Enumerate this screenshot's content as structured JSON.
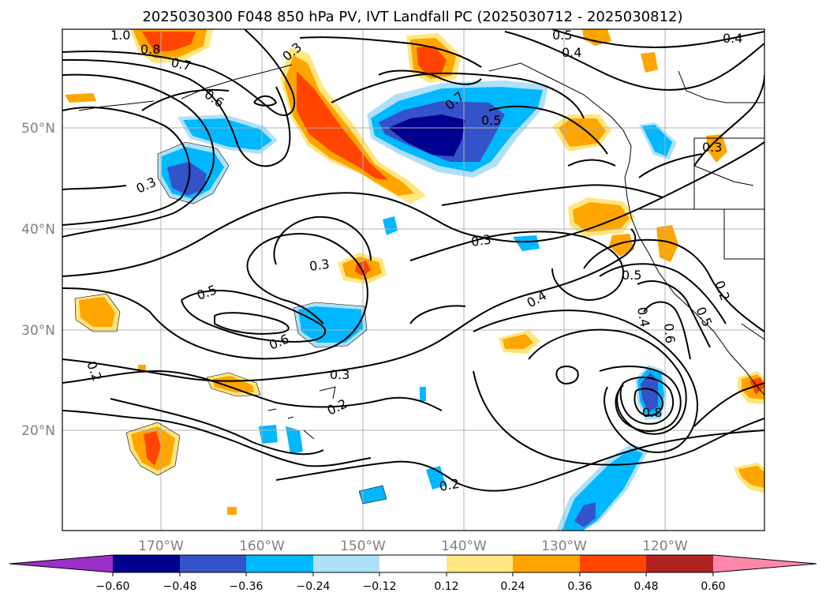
{
  "title": "2025030300 F048 850 hPa PV, IVT Landfall PC (2025030712 - 2025030812)",
  "map": {
    "lat_labels": [
      "50°N",
      "40°N",
      "30°N",
      "20°N"
    ],
    "lon_labels": [
      "170°W",
      "160°W",
      "150°W",
      "140°W",
      "130°W",
      "120°W"
    ]
  },
  "colorbar": {
    "tick_labels": [
      "−0.60",
      "−0.48",
      "−0.36",
      "−0.24",
      "−0.12",
      "0.12",
      "0.24",
      "0.36",
      "0.48",
      "0.60"
    ],
    "colors": [
      "#9a30c8",
      "#000090",
      "#3553c8",
      "#00b8ff",
      "#aee0fa",
      "#ffffff",
      "#ffe680",
      "#ffa500",
      "#ff4500",
      "#b22222",
      "#ff88aa"
    ]
  },
  "contour_labels": [
    "1.0",
    "0.8",
    "0.7",
    "0.6",
    "0.5",
    "0.4",
    "0.4",
    "0.7",
    "0.5",
    "0.3",
    "0.3",
    "0.3",
    "0.3",
    "0.5",
    "0.6",
    "0.3",
    "0.2",
    "0.2",
    "0.4",
    "0.5",
    "0.4",
    "0.6",
    "0.5",
    "0.8",
    "0.2",
    "0.2",
    "0.3"
  ]
}
